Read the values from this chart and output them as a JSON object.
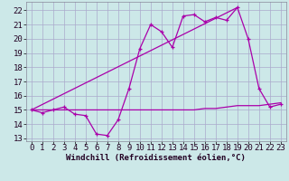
{
  "xlabel": "Windchill (Refroidissement éolien,°C)",
  "background_color": "#cce8e8",
  "grid_color": "#aaaacc",
  "line_color": "#aa00aa",
  "xlim": [
    -0.5,
    23.5
  ],
  "ylim": [
    12.8,
    22.6
  ],
  "xticks": [
    0,
    1,
    2,
    3,
    4,
    5,
    6,
    7,
    8,
    9,
    10,
    11,
    12,
    13,
    14,
    15,
    16,
    17,
    18,
    19,
    20,
    21,
    22,
    23
  ],
  "yticks": [
    13,
    14,
    15,
    16,
    17,
    18,
    19,
    20,
    21,
    22
  ],
  "line1_x": [
    0,
    1,
    2,
    3,
    4,
    5,
    6,
    7,
    8,
    9,
    10,
    11,
    12,
    13,
    14,
    15,
    16,
    17,
    18,
    19,
    20,
    21,
    22,
    23
  ],
  "line1_y": [
    15.0,
    14.8,
    15.0,
    15.2,
    14.7,
    14.6,
    13.3,
    13.2,
    14.3,
    16.5,
    19.3,
    21.0,
    20.5,
    19.4,
    21.6,
    21.7,
    21.2,
    21.5,
    21.3,
    22.2,
    20.0,
    16.5,
    15.2,
    15.4
  ],
  "line2_x": [
    0,
    19
  ],
  "line2_y": [
    15.0,
    22.2
  ],
  "line3_x": [
    0,
    1,
    2,
    3,
    4,
    5,
    6,
    7,
    8,
    9,
    10,
    11,
    12,
    13,
    14,
    15,
    16,
    17,
    18,
    19,
    20,
    21,
    22,
    23
  ],
  "line3_y": [
    15.0,
    15.0,
    15.0,
    15.0,
    15.0,
    15.0,
    15.0,
    15.0,
    15.0,
    15.0,
    15.0,
    15.0,
    15.0,
    15.0,
    15.0,
    15.0,
    15.1,
    15.1,
    15.2,
    15.3,
    15.3,
    15.3,
    15.4,
    15.5
  ],
  "fontsize_xlabel": 6.5,
  "fontsize_ticks": 6.5
}
